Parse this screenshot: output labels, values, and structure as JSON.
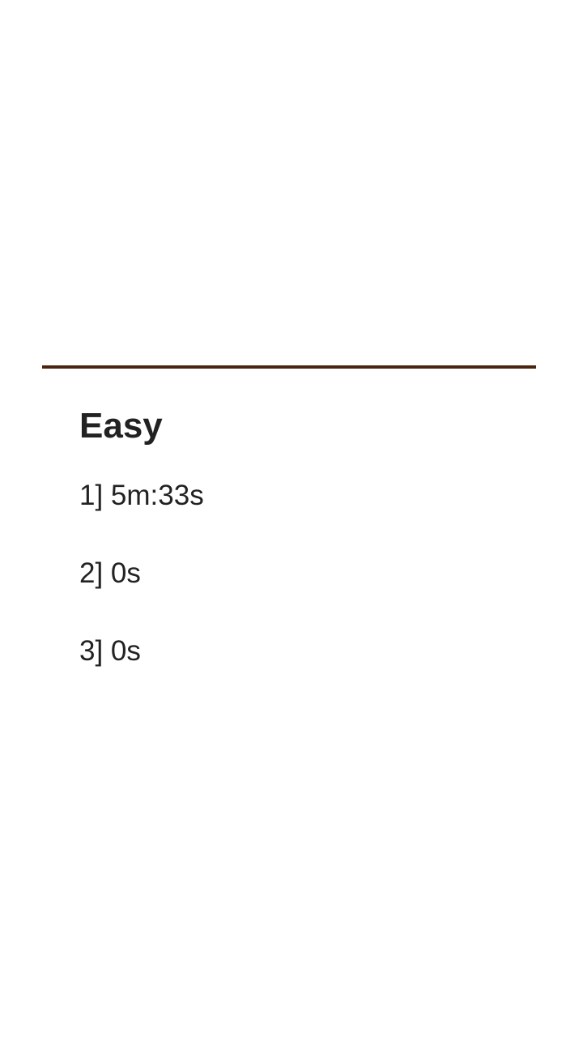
{
  "scores_panel": {
    "difficulty": "Easy",
    "entries": [
      "1] 5m:33s",
      "2] 0s",
      "3] 0s"
    ]
  },
  "colors": {
    "divider": "#4a2410",
    "text": "#222222",
    "background": "#ffffff"
  }
}
